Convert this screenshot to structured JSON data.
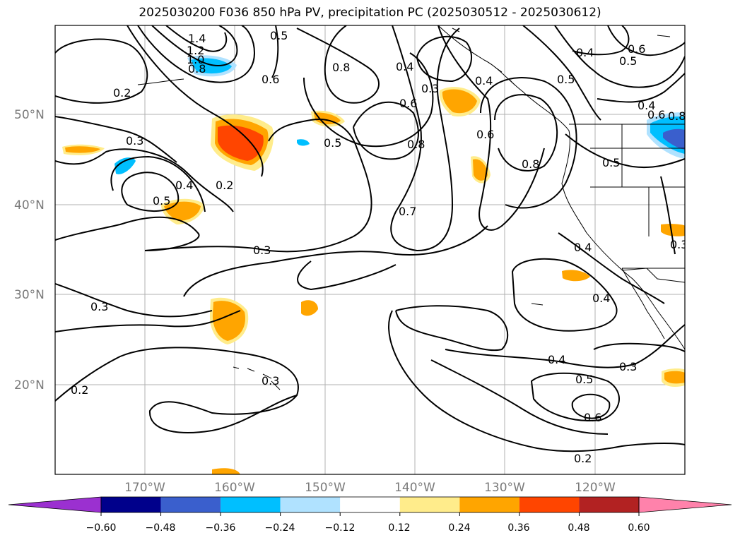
{
  "title": "2025030200 F036 850 hPa PV, precipitation PC (2025030512 - 2025030612)",
  "map": {
    "lat_labels": [
      "50°N",
      "40°N",
      "30°N",
      "20°N"
    ],
    "lon_labels": [
      "170°W",
      "160°W",
      "150°W",
      "140°W",
      "130°W",
      "120°W"
    ],
    "contour_labels": [
      "1.4",
      "1.2",
      "1.0",
      "0.8",
      "0.5",
      "0.6",
      "0.2",
      "0.3",
      "0.5",
      "0.4",
      "0.2",
      "0.3",
      "0.2",
      "0.3",
      "0.3",
      "0.8",
      "0.3",
      "0.4",
      "0.6",
      "0.8",
      "0.5",
      "0.7",
      "0.4",
      "0.6",
      "0.6",
      "0.5",
      "0.4",
      "0.6",
      "0.8",
      "0.5",
      "0.8",
      "0.4",
      "0.4",
      "0.3",
      "0.4",
      "0.5",
      "0.6",
      "0.3",
      "0.2"
    ]
  },
  "colorbar": {
    "ticks": [
      "−0.60",
      "−0.48",
      "−0.36",
      "−0.24",
      "−0.12",
      "0.12",
      "0.24",
      "0.36",
      "0.48",
      "0.60"
    ],
    "colors": [
      "#9b30d0",
      "#00008b",
      "#3a5fcd",
      "#00bfff",
      "#b0e2ff",
      "#ffffff",
      "#ffec8b",
      "#ffa500",
      "#ff4500",
      "#b22222",
      "#ff82ab"
    ]
  }
}
